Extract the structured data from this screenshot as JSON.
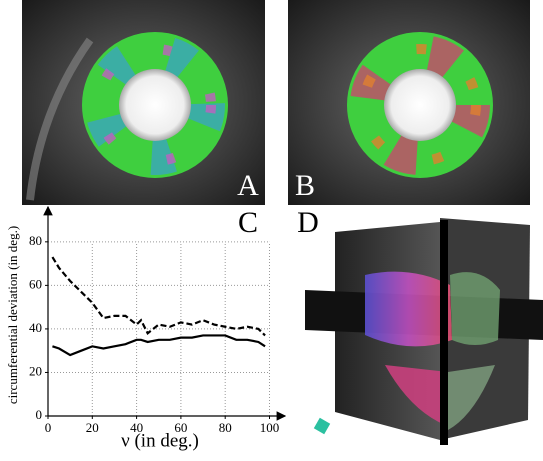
{
  "panels": [
    "A",
    "B",
    "C",
    "D"
  ],
  "chart_data": {
    "type": "line",
    "xlabel": "ν (in deg.)",
    "ylabel": "circumferential deviation (in deg.)",
    "x": [
      2,
      5,
      10,
      15,
      20,
      25,
      30,
      35,
      40,
      42,
      45,
      50,
      55,
      60,
      65,
      70,
      75,
      80,
      85,
      90,
      95,
      98
    ],
    "series": [
      {
        "color": "#000000",
        "dash": true,
        "values": [
          73,
          68,
          62,
          57,
          52,
          45,
          46,
          46,
          42,
          44,
          38,
          42,
          41,
          43,
          42,
          44,
          42,
          41,
          40,
          41,
          40,
          37
        ]
      },
      {
        "color": "#000000",
        "dash": false,
        "values": [
          32,
          31,
          28,
          30,
          32,
          31,
          32,
          33,
          35,
          35,
          34,
          35,
          35,
          36,
          36,
          37,
          37,
          37,
          35,
          35,
          34,
          32
        ]
      }
    ],
    "xlim": [
      0,
      107
    ],
    "ylim": [
      0,
      96
    ],
    "xticks": [
      0,
      20,
      40,
      60,
      80,
      100
    ],
    "yticks": [
      0,
      20,
      40,
      60,
      80
    ],
    "grid": true
  }
}
